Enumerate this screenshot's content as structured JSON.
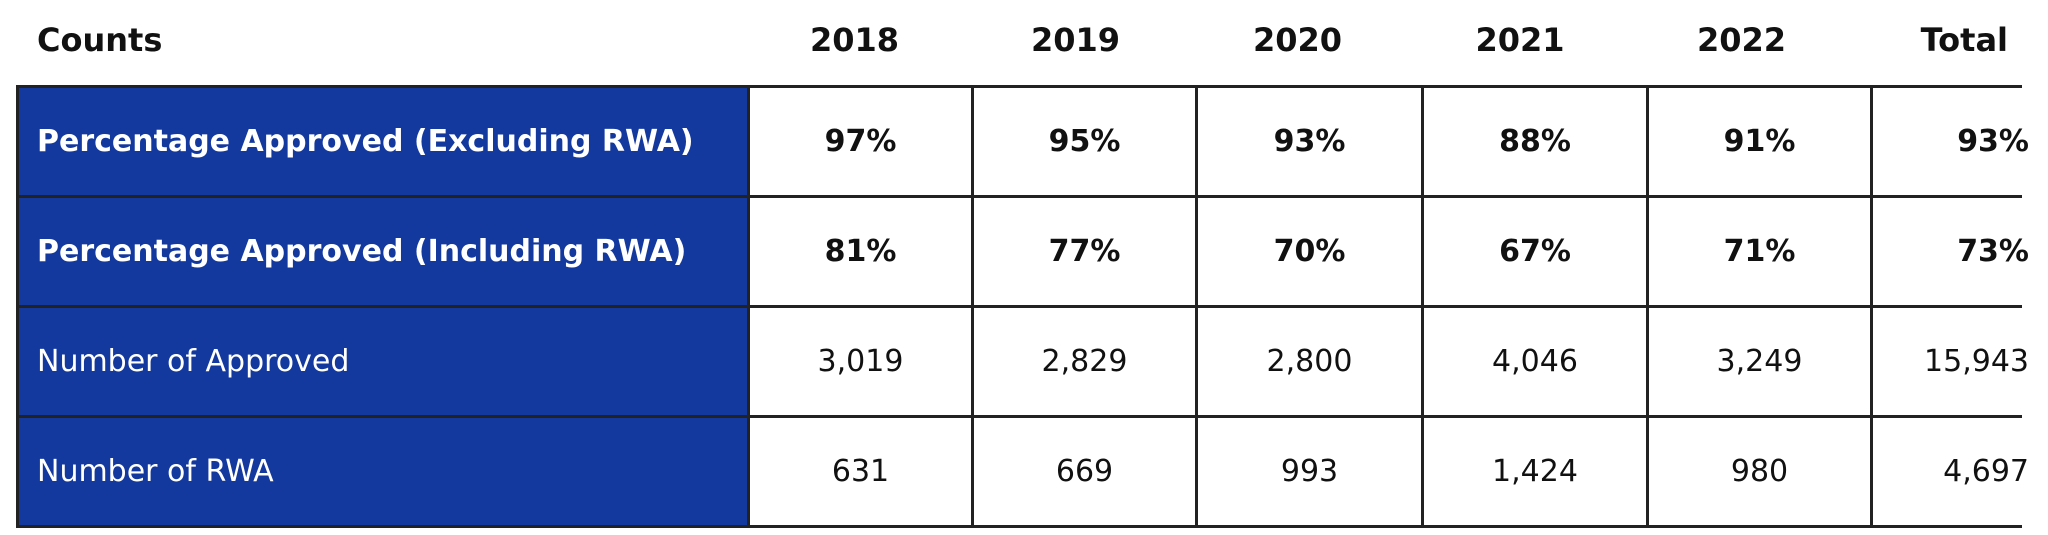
{
  "table": {
    "header": [
      "Counts",
      "2018",
      "2019",
      "2020",
      "2021",
      "2022",
      "Total"
    ],
    "rows": [
      [
        "Percentage Approved (Excluding RWA)",
        "97%",
        "95%",
        "93%",
        "88%",
        "91%",
        "93%"
      ],
      [
        "Percentage Approved (Including RWA)",
        "81%",
        "77%",
        "70%",
        "67%",
        "71%",
        "73%"
      ],
      [
        "Number of Approved",
        "3,019",
        "2,829",
        "2,800",
        "4,046",
        "3,249",
        "15,943"
      ],
      [
        "Number of RWA",
        "631",
        "669",
        "993",
        "1,424",
        "980",
        "4,697"
      ]
    ]
  }
}
